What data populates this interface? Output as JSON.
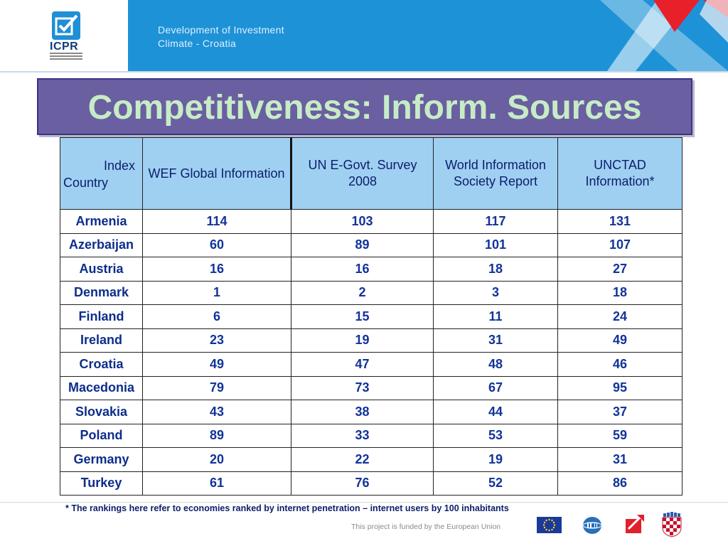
{
  "header": {
    "logo_text": "ICPR",
    "title_line1": "Development of Investment",
    "title_line2": "Climate - Croatia"
  },
  "slide": {
    "title": "Competitiveness: Inform. Sources"
  },
  "table": {
    "corner_index": "Index",
    "corner_country": "Country",
    "columns": [
      "WEF Global Information",
      "UN E-Govt.  Survey 2008",
      "World Information Society Report",
      "UNCTAD Information*"
    ],
    "rows": [
      {
        "country": "Armenia",
        "values": [
          "114",
          "103",
          "117",
          "131"
        ]
      },
      {
        "country": "Azerbaijan",
        "values": [
          "60",
          "89",
          "101",
          "107"
        ]
      },
      {
        "country": "Austria",
        "values": [
          "16",
          "16",
          "18",
          "27"
        ]
      },
      {
        "country": "Denmark",
        "values": [
          "1",
          "2",
          "3",
          "18"
        ]
      },
      {
        "country": "Finland",
        "values": [
          "6",
          "15",
          "11",
          "24"
        ]
      },
      {
        "country": "Ireland",
        "values": [
          "23",
          "19",
          "31",
          "49"
        ]
      },
      {
        "country": "Croatia",
        "values": [
          "49",
          "47",
          "48",
          "46"
        ]
      },
      {
        "country": "Macedonia",
        "values": [
          "79",
          "73",
          "67",
          "95"
        ]
      },
      {
        "country": "Slovakia",
        "values": [
          "43",
          "38",
          "44",
          "37"
        ]
      },
      {
        "country": "Poland",
        "values": [
          "89",
          "33",
          "53",
          "59"
        ]
      },
      {
        "country": "Germany",
        "values": [
          "20",
          "22",
          "19",
          "31"
        ]
      },
      {
        "country": "Turkey",
        "values": [
          "61",
          "76",
          "52",
          "86"
        ]
      }
    ]
  },
  "footnote": "* The rankings here refer to  economies ranked by internet penetration – internet users by 100 inhabitants",
  "footer": {
    "funded_text": "This project is funded by the European Union"
  },
  "icons": [
    "icpr-logo-icon",
    "eu-flag-icon",
    "idi-logo-icon",
    "agency-logo-icon",
    "croatia-coat-of-arms-icon"
  ],
  "colors": {
    "band_blue": "#1e92d7",
    "title_bg": "#6a5fa0",
    "title_text": "#c6ecc6",
    "table_header_bg": "#9fd0f2",
    "table_text": "#123399"
  }
}
